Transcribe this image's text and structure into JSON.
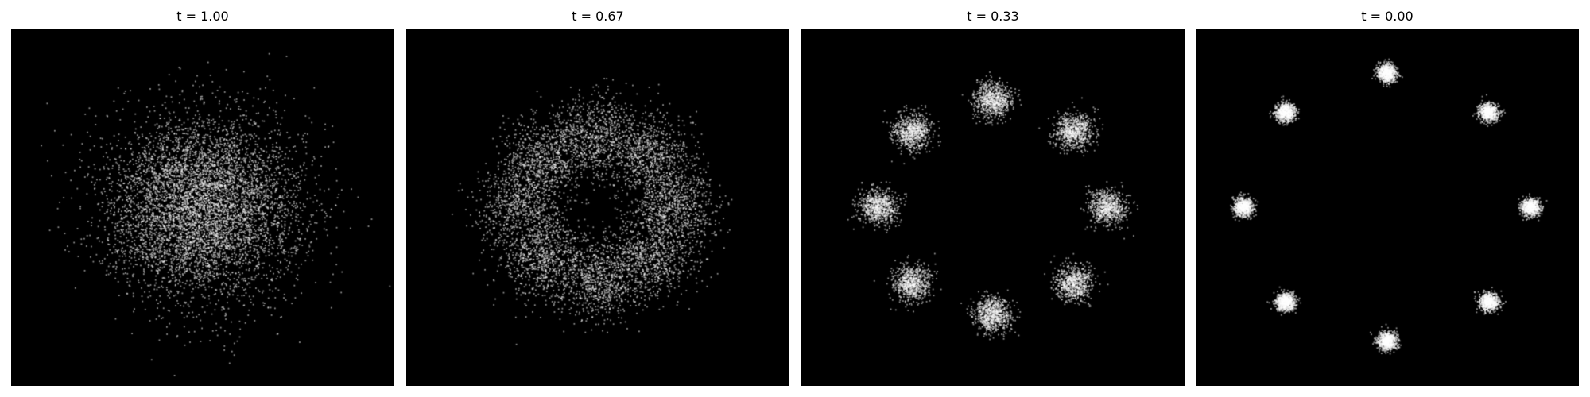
{
  "chart_data": [
    {
      "type": "scatter",
      "title": "t = 1.00",
      "background": "#000000",
      "point_color": "#ffffff",
      "grid": false,
      "axes_visible": false,
      "xlim": [
        -4,
        4
      ],
      "ylim": [
        -4,
        4
      ],
      "distribution": {
        "kind": "gaussian",
        "center": [
          0,
          0
        ],
        "std": 1.0,
        "n_points": 6000
      }
    },
    {
      "type": "scatter",
      "title": "t = 0.67",
      "background": "#000000",
      "point_color": "#ffffff",
      "grid": false,
      "axes_visible": false,
      "xlim": [
        -4,
        4
      ],
      "ylim": [
        -4,
        4
      ],
      "distribution": {
        "kind": "gaussian_mixture_ring",
        "n_modes": 8,
        "ring_radius": 1.6,
        "std": 0.45,
        "n_points": 6000
      }
    },
    {
      "type": "scatter",
      "title": "t = 0.33",
      "background": "#000000",
      "point_color": "#ffffff",
      "grid": false,
      "axes_visible": false,
      "xlim": [
        -4,
        4
      ],
      "ylim": [
        -4,
        4
      ],
      "distribution": {
        "kind": "gaussian_mixture_ring",
        "n_modes": 8,
        "ring_radius": 2.4,
        "std": 0.2,
        "n_points": 6000
      }
    },
    {
      "type": "scatter",
      "title": "t = 0.00",
      "background": "#000000",
      "point_color": "#ffffff",
      "grid": false,
      "axes_visible": false,
      "xlim": [
        -4,
        4
      ],
      "ylim": [
        -4,
        4
      ],
      "distribution": {
        "kind": "gaussian_mixture_ring",
        "n_modes": 8,
        "ring_radius": 3.0,
        "std": 0.1,
        "n_points": 6000
      }
    }
  ]
}
